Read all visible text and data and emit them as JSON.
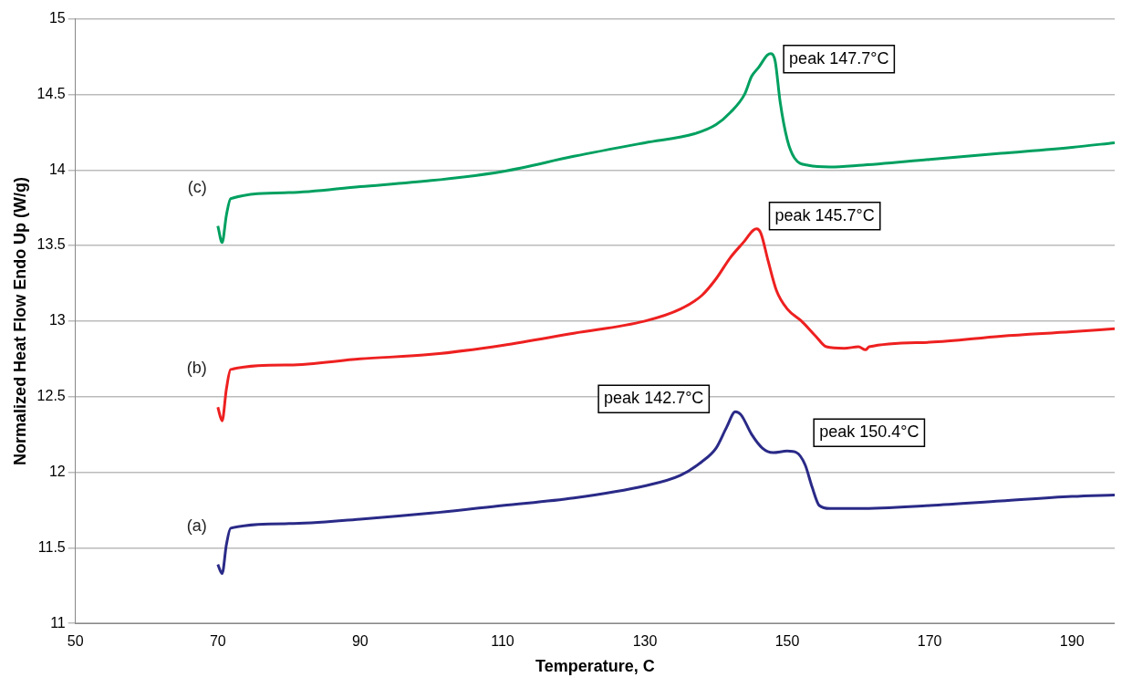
{
  "chart_data": {
    "type": "line",
    "xlabel": "Temperature, C",
    "ylabel": "Normalized Heat Flow Endo Up (W/g)",
    "xlim": [
      50,
      196
    ],
    "xticks": [
      50,
      70,
      90,
      110,
      130,
      150,
      170,
      190
    ],
    "ylim": [
      11,
      15
    ],
    "yticks": [
      11,
      11.5,
      12,
      12.5,
      13,
      13.5,
      14,
      14.5,
      15
    ],
    "grid": "y",
    "legend": false,
    "marker": "none",
    "line_style": "solid",
    "series": [
      {
        "name": "(c)",
        "color": "#00a060",
        "x": [
          70,
          70.6,
          71.2,
          71.8,
          80,
          90,
          100,
          110,
          120,
          130,
          137,
          140,
          142,
          144,
          145,
          146,
          147.2,
          147.7,
          148.3,
          149,
          150,
          151,
          153,
          156,
          160,
          170,
          180,
          190,
          196
        ],
        "values": [
          13.63,
          13.52,
          13.7,
          13.81,
          13.85,
          13.89,
          13.93,
          13.99,
          14.09,
          14.18,
          14.24,
          14.3,
          14.38,
          14.5,
          14.62,
          14.68,
          14.76,
          14.77,
          14.72,
          14.45,
          14.2,
          14.08,
          14.03,
          14.02,
          14.03,
          14.07,
          14.11,
          14.15,
          14.18
        ]
      },
      {
        "name": "(b)",
        "color": "#ee2020",
        "x": [
          70,
          70.6,
          71.2,
          71.8,
          80,
          90,
          100,
          110,
          120,
          130,
          135,
          138,
          140,
          142,
          144,
          145.2,
          145.7,
          146.3,
          147.3,
          148.5,
          150,
          152,
          154,
          155.5,
          158,
          160,
          161,
          161.5,
          170,
          180,
          190,
          196
        ],
        "values": [
          12.43,
          12.34,
          12.55,
          12.68,
          12.71,
          12.75,
          12.78,
          12.84,
          12.92,
          13.0,
          13.08,
          13.17,
          13.28,
          13.42,
          13.53,
          13.6,
          13.61,
          13.58,
          13.4,
          13.2,
          13.08,
          13.0,
          12.9,
          12.83,
          12.82,
          12.83,
          12.81,
          12.83,
          12.86,
          12.9,
          12.93,
          12.95
        ]
      },
      {
        "name": "(a)",
        "color": "#2a2a88",
        "x": [
          70,
          70.6,
          71.2,
          71.8,
          80,
          90,
          100,
          110,
          120,
          130,
          135,
          138,
          140,
          141.5,
          142.7,
          143.5,
          145,
          146.5,
          148,
          150,
          151.3,
          152.5,
          153.5,
          154.5,
          156,
          160,
          170,
          180,
          190,
          196
        ],
        "values": [
          11.39,
          11.33,
          11.52,
          11.63,
          11.66,
          11.69,
          11.73,
          11.78,
          11.83,
          11.91,
          11.98,
          12.07,
          12.16,
          12.3,
          12.4,
          12.38,
          12.25,
          12.16,
          12.13,
          12.14,
          12.13,
          12.05,
          11.9,
          11.78,
          11.76,
          11.76,
          11.78,
          11.81,
          11.84,
          11.85
        ]
      }
    ],
    "annotations": [
      {
        "text": "peak 147.7°C",
        "x": 147.7,
        "y": 14.77
      },
      {
        "text": "peak 145.7°C",
        "x": 145.7,
        "y": 13.61
      },
      {
        "text": "peak 142.7°C",
        "x": 142.7,
        "y": 12.4
      },
      {
        "text": "peak 150.4°C",
        "x": 150.4,
        "y": 12.14
      }
    ]
  }
}
